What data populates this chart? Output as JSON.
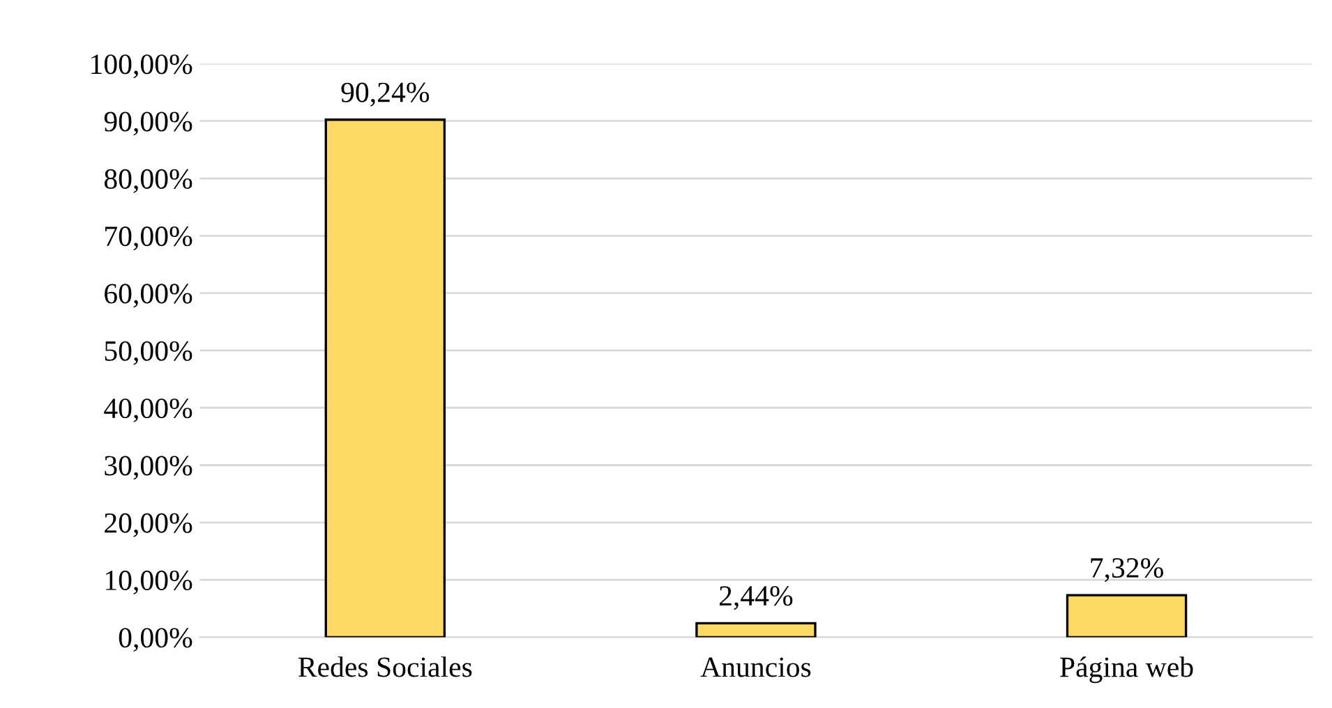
{
  "chart_data": {
    "type": "bar",
    "categories": [
      "Redes Sociales",
      "Anuncios",
      "Página web"
    ],
    "values": [
      90.24,
      2.44,
      7.32
    ],
    "value_labels": [
      "90,24%",
      "2,44%",
      "7,32%"
    ],
    "color": "#ffd966",
    "ylim": [
      0,
      100
    ],
    "yticks": [
      {
        "value": 0,
        "label": "0,00%"
      },
      {
        "value": 10,
        "label": "10,00%"
      },
      {
        "value": 20,
        "label": "20,00%"
      },
      {
        "value": 30,
        "label": "30,00%"
      },
      {
        "value": 40,
        "label": "40,00%"
      },
      {
        "value": 50,
        "label": "50,00%"
      },
      {
        "value": 60,
        "label": "60,00%"
      },
      {
        "value": 70,
        "label": "70,00%"
      },
      {
        "value": 80,
        "label": "80,00%"
      },
      {
        "value": 90,
        "label": "90,00%"
      },
      {
        "value": 100,
        "label": "100,00%"
      }
    ],
    "grid": "y"
  }
}
